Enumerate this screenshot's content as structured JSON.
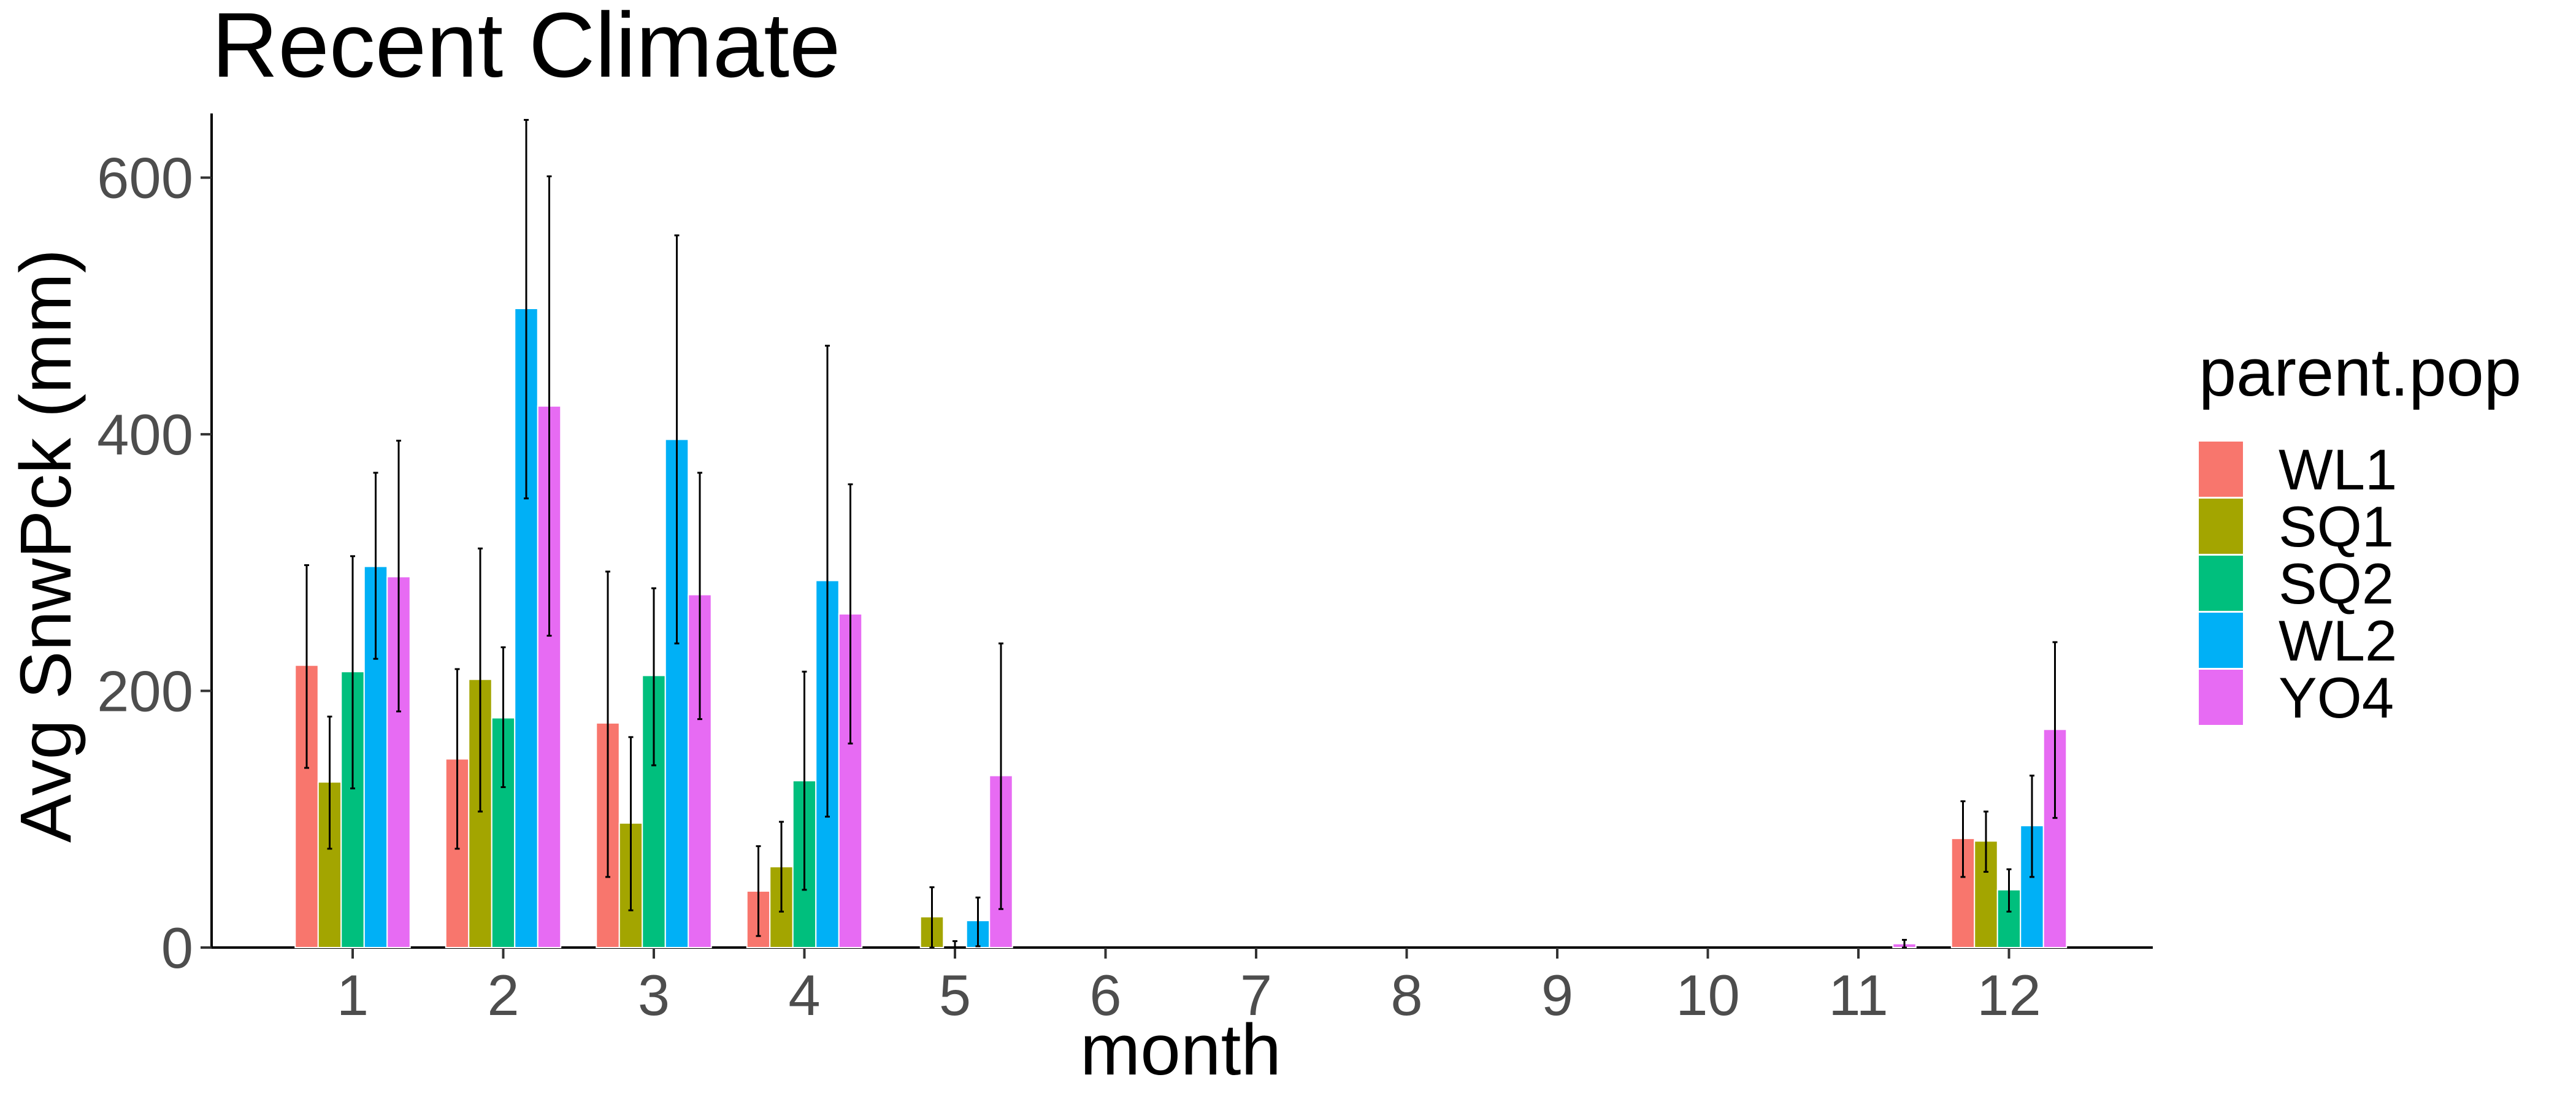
{
  "chart_data": {
    "type": "bar",
    "title": "Recent Climate",
    "xlabel": "month",
    "ylabel": "Avg SnwPck (mm)",
    "categories": [
      "1",
      "2",
      "3",
      "4",
      "5",
      "6",
      "7",
      "8",
      "9",
      "10",
      "11",
      "12"
    ],
    "y_ticks": [
      "0",
      "200",
      "400",
      "600"
    ],
    "ylim": [
      0,
      650
    ],
    "grid": false,
    "legend": {
      "title": "parent.pop",
      "position": "right"
    },
    "series": [
      {
        "name": "WL1",
        "color": "#F8766D",
        "values": [
          220,
          147,
          175,
          44,
          0,
          0,
          0,
          0,
          0,
          0,
          0,
          85
        ],
        "err_low": [
          140,
          77,
          55,
          9,
          0,
          0,
          0,
          0,
          0,
          0,
          0,
          55
        ],
        "err_high": [
          298,
          217,
          293,
          79,
          0,
          0,
          0,
          0,
          0,
          0,
          0,
          114
        ]
      },
      {
        "name": "SQ1",
        "color": "#A3A500",
        "values": [
          129,
          209,
          97,
          63,
          24,
          0,
          0,
          0,
          0,
          0,
          0,
          83
        ],
        "err_low": [
          77,
          106,
          29,
          28,
          0,
          0,
          0,
          0,
          0,
          0,
          0,
          59
        ],
        "err_high": [
          180,
          311,
          164,
          98,
          47,
          0,
          0,
          0,
          0,
          0,
          0,
          106
        ]
      },
      {
        "name": "SQ2",
        "color": "#00BF7D",
        "values": [
          215,
          179,
          212,
          130,
          0,
          0,
          0,
          0,
          0,
          0,
          0,
          45
        ],
        "err_low": [
          124,
          125,
          142,
          45,
          0,
          0,
          0,
          0,
          0,
          0,
          0,
          28
        ],
        "err_high": [
          305,
          234,
          280,
          215,
          5,
          0,
          0,
          0,
          0,
          0,
          0,
          61
        ]
      },
      {
        "name": "WL2",
        "color": "#00B0F6",
        "values": [
          297,
          498,
          396,
          286,
          21,
          0,
          0,
          0,
          0,
          0,
          0,
          95
        ],
        "err_low": [
          225,
          350,
          237,
          102,
          1,
          0,
          0,
          0,
          0,
          0,
          0,
          55
        ],
        "err_high": [
          370,
          645,
          555,
          469,
          39,
          0,
          0,
          0,
          0,
          0,
          0,
          134
        ]
      },
      {
        "name": "YO4",
        "color": "#E76BF3",
        "values": [
          289,
          422,
          275,
          260,
          134,
          0,
          0,
          0,
          0,
          0,
          3,
          170
        ],
        "err_low": [
          184,
          243,
          178,
          159,
          30,
          0,
          0,
          0,
          0,
          0,
          0,
          101
        ],
        "err_high": [
          395,
          601,
          370,
          361,
          237,
          0,
          0,
          0,
          0,
          0,
          6,
          238
        ]
      }
    ]
  }
}
